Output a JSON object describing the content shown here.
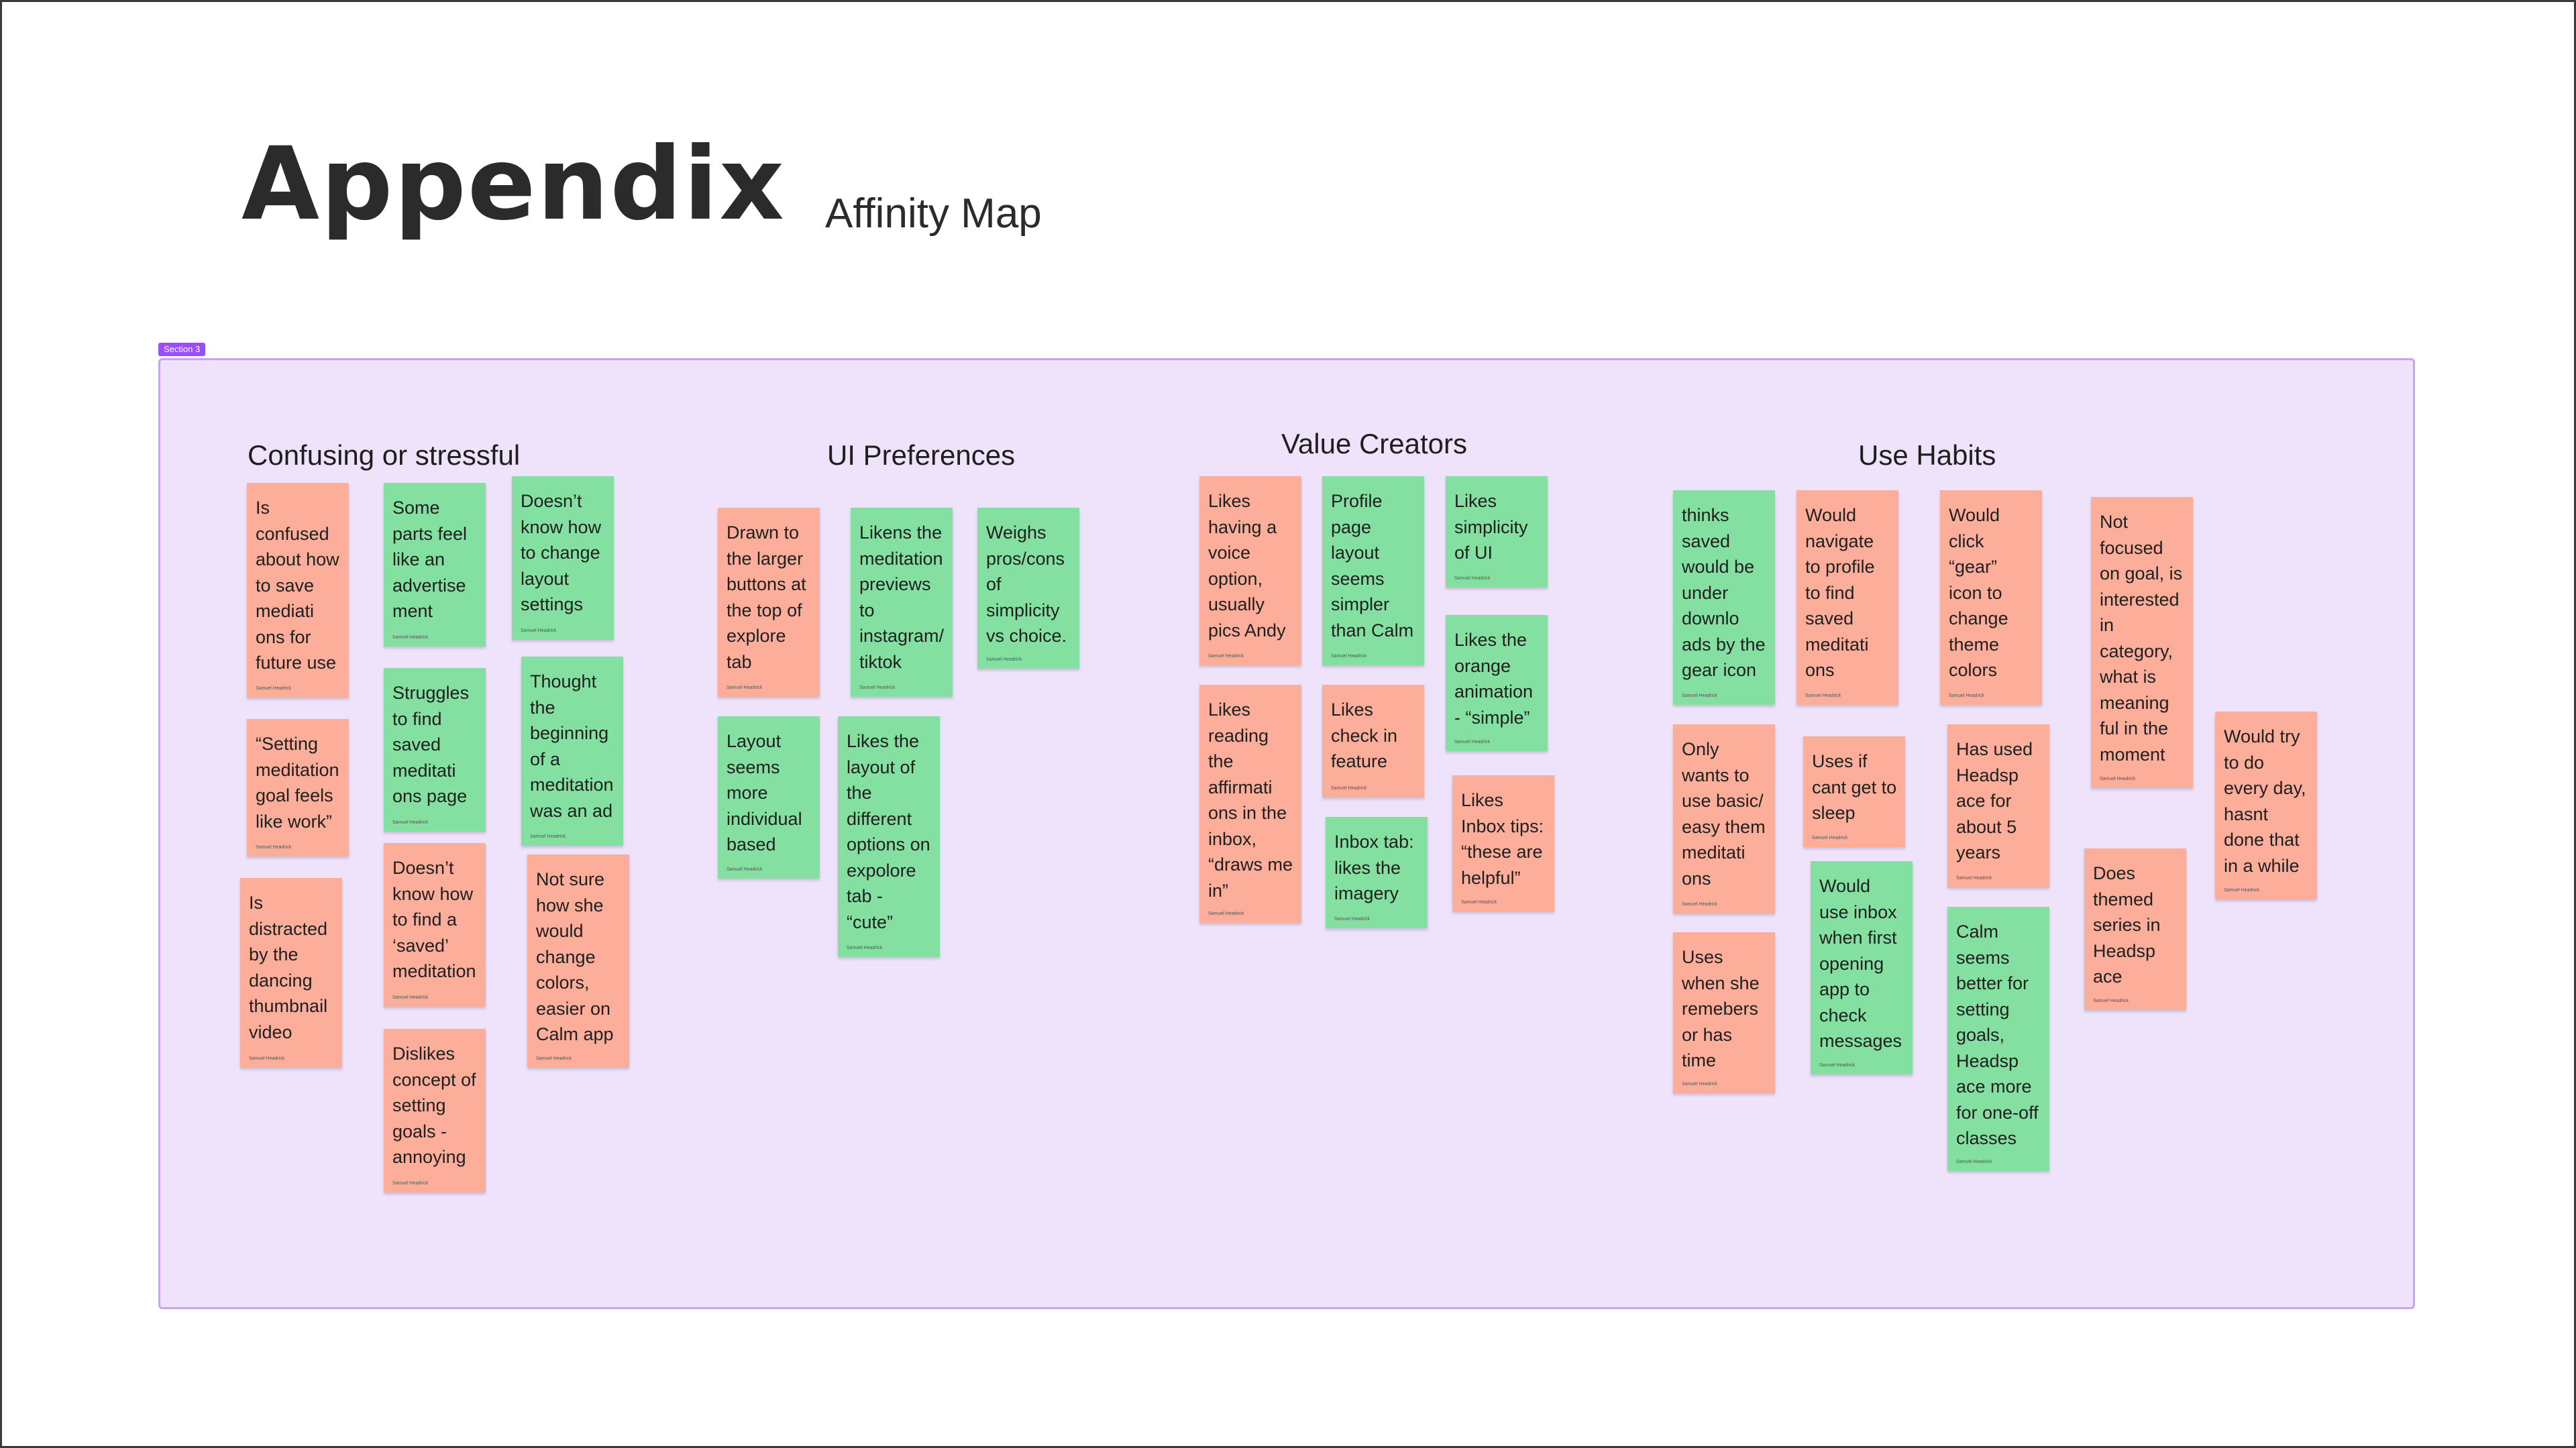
{
  "page": {
    "title": "Appendix",
    "subtitle": "Affinity Map"
  },
  "section": {
    "tag": "Section 3"
  },
  "colors": {
    "red_note": "#fcae9b",
    "green_note": "#84e0a1",
    "section_bg": "#efe3fc",
    "section_tag": "#9b4dff"
  },
  "groups": [
    {
      "label": "Confusing or stressful"
    },
    {
      "label": "UI Preferences"
    },
    {
      "label": "Value Creators"
    },
    {
      "label": "Use Habits"
    }
  ],
  "notes": [
    {
      "text": "Is confused about how to save mediati ons for future use",
      "author": "Samuel Headrick"
    },
    {
      "text": "“Setting meditation goal feels like work”",
      "author": "Samuel Headrick"
    },
    {
      "text": "Is distracted by the dancing thumbnail video",
      "author": "Samuel Headrick"
    },
    {
      "text": "Some parts feel like an advertise ment",
      "author": "Samuel Headrick"
    },
    {
      "text": "Struggles to find saved meditati ons page",
      "author": "Samuel Headrick"
    },
    {
      "text": "Doesn’t know how to find a ‘saved’ meditation",
      "author": "Samuel Headrick"
    },
    {
      "text": "Dislikes concept of setting goals - annoying",
      "author": "Samuel Headrick"
    },
    {
      "text": "Doesn’t know how to change layout settings",
      "author": "Samuel Headrick"
    },
    {
      "text": "Thought the beginning of a meditation was an ad",
      "author": "Samuel Headrick"
    },
    {
      "text": "Not sure how she would change colors, easier on Calm app",
      "author": "Samuel Headrick"
    },
    {
      "text": "Drawn to the larger buttons at the top of explore tab",
      "author": "Samuel Headrick"
    },
    {
      "text": "Likens the meditation previews to instagram/ tiktok",
      "author": "Samuel Headrick"
    },
    {
      "text": "Weighs pros/cons of simplicity vs choice.",
      "author": "Samuel Headrick"
    },
    {
      "text": "Layout seems more individual based",
      "author": "Samuel Headrick"
    },
    {
      "text": "Likes the layout of the different options on expolore tab - “cute”",
      "author": "Samuel Headrick"
    },
    {
      "text": "Likes having a voice option, usually pics Andy",
      "author": "Samuel Headrick"
    },
    {
      "text": "Likes reading the affirmati ons in the inbox, “draws me in”",
      "author": "Samuel Headrick"
    },
    {
      "text": "Profile page layout seems simpler than Calm",
      "author": "Samuel Headrick"
    },
    {
      "text": "Likes check in feature",
      "author": "Samuel Headrick"
    },
    {
      "text": "Inbox tab: likes the imagery",
      "author": "Samuel Headrick"
    },
    {
      "text": "Likes simplicity of UI",
      "author": "Samuel Headrick"
    },
    {
      "text": "Likes the orange animation - “simple”",
      "author": "Samuel Headrick"
    },
    {
      "text": "Likes Inbox tips: “these are helpful”",
      "author": "Samuel Headrick"
    },
    {
      "text": "thinks saved would be under downlo ads by the gear icon",
      "author": "Samuel Headrick"
    },
    {
      "text": "Only wants to use basic/ easy them meditati ons",
      "author": "Samuel Headrick"
    },
    {
      "text": "Uses when she remebers or has time",
      "author": "Samuel Headrick"
    },
    {
      "text": "Would navigate to profile to find saved meditati ons",
      "author": "Samuel Headrick"
    },
    {
      "text": "Uses if cant get to sleep",
      "author": "Samuel Headrick"
    },
    {
      "text": "Would use inbox when first opening app to check messages",
      "author": "Samuel Headrick"
    },
    {
      "text": "Would click “gear” icon to change theme colors",
      "author": "Samuel Headrick"
    },
    {
      "text": "Has used Headsp ace for about 5 years",
      "author": "Samuel Headrick"
    },
    {
      "text": "Calm seems better for setting goals, Headsp ace more for one-off classes",
      "author": "Samuel Headrick"
    },
    {
      "text": "Not focused on goal, is interested in category, what is meaning ful in the moment",
      "author": "Samuel Headrick"
    },
    {
      "text": "Does themed series in Headsp ace",
      "author": "Samuel Headrick"
    },
    {
      "text": "Would try to do every day, hasnt done that in a while",
      "author": "Samuel Headrick"
    }
  ]
}
